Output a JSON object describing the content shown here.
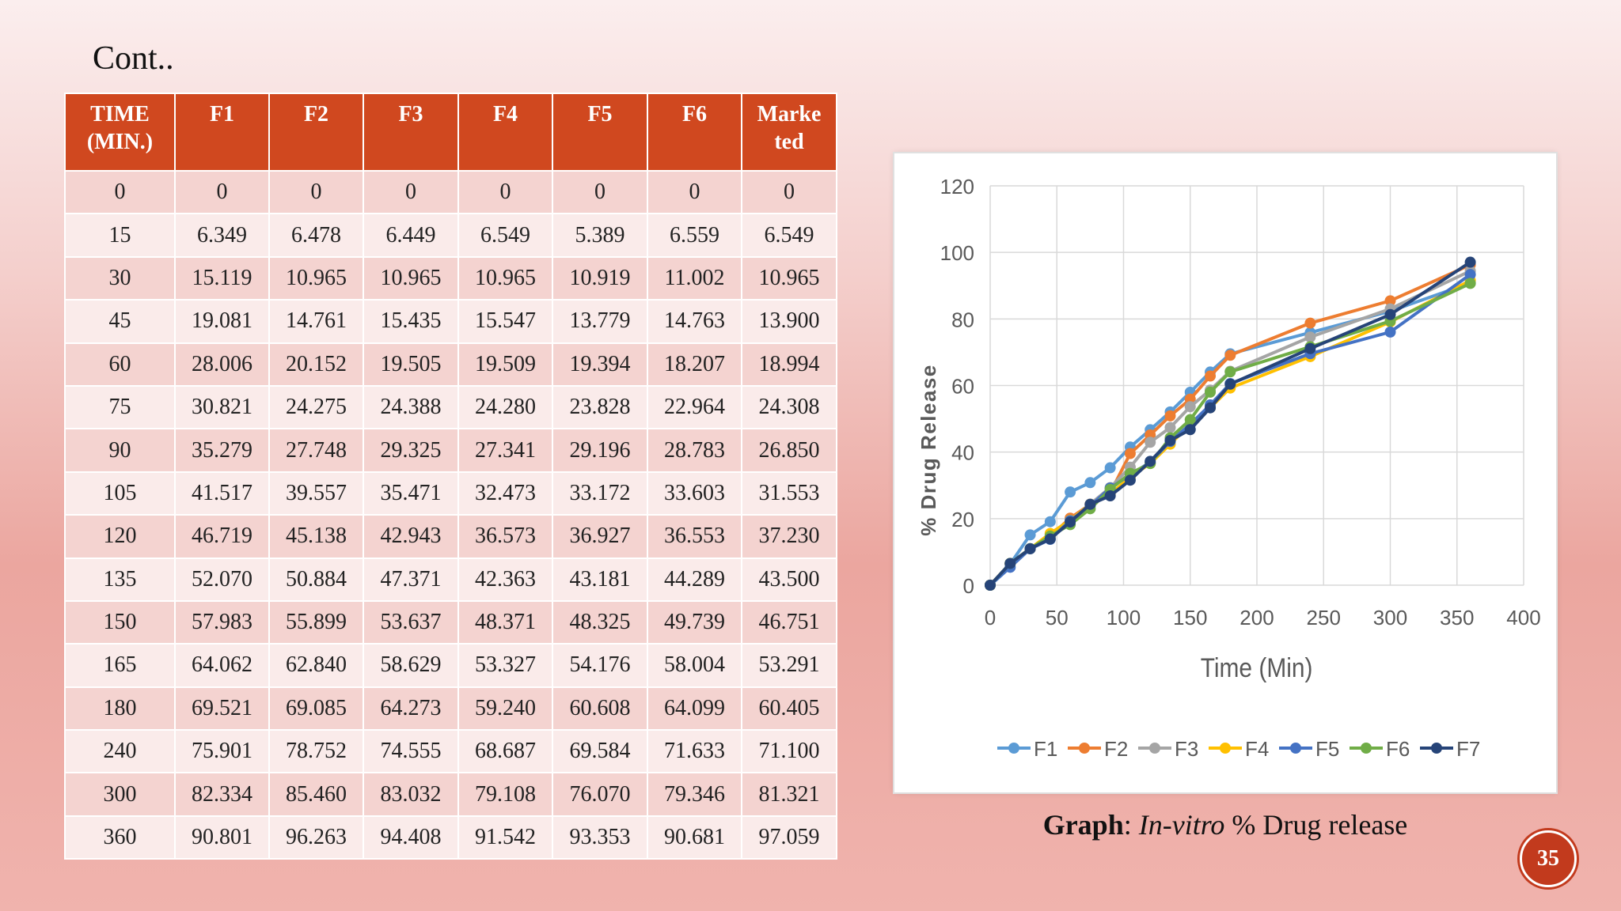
{
  "slide": {
    "title": "Cont..",
    "page_number": "35",
    "caption_bold": "Graph",
    "caption_sep": ": ",
    "caption_italic": "In-vitro",
    "caption_rest": " % Drug release"
  },
  "table": {
    "headers": [
      "TIME (MIN.)",
      "F1",
      "F2",
      "F3",
      "F4",
      "F5",
      "F6",
      "Marke ted"
    ],
    "rows": [
      [
        "0",
        "0",
        "0",
        "0",
        "0",
        "0",
        "0",
        "0"
      ],
      [
        "15",
        "6.349",
        "6.478",
        "6.449",
        "6.549",
        "5.389",
        "6.559",
        "6.549"
      ],
      [
        "30",
        "15.119",
        "10.965",
        "10.965",
        "10.965",
        "10.919",
        "11.002",
        "10.965"
      ],
      [
        "45",
        "19.081",
        "14.761",
        "15.435",
        "15.547",
        "13.779",
        "14.763",
        "13.900"
      ],
      [
        "60",
        "28.006",
        "20.152",
        "19.505",
        "19.509",
        "19.394",
        "18.207",
        "18.994"
      ],
      [
        "75",
        "30.821",
        "24.275",
        "24.388",
        "24.280",
        "23.828",
        "22.964",
        "24.308"
      ],
      [
        "90",
        "35.279",
        "27.748",
        "29.325",
        "27.341",
        "29.196",
        "28.783",
        "26.850"
      ],
      [
        "105",
        "41.517",
        "39.557",
        "35.471",
        "32.473",
        "33.172",
        "33.603",
        "31.553"
      ],
      [
        "120",
        "46.719",
        "45.138",
        "42.943",
        "36.573",
        "36.927",
        "36.553",
        "37.230"
      ],
      [
        "135",
        "52.070",
        "50.884",
        "47.371",
        "42.363",
        "43.181",
        "44.289",
        "43.500"
      ],
      [
        "150",
        "57.983",
        "55.899",
        "53.637",
        "48.371",
        "48.325",
        "49.739",
        "46.751"
      ],
      [
        "165",
        "64.062",
        "62.840",
        "58.629",
        "53.327",
        "54.176",
        "58.004",
        "53.291"
      ],
      [
        "180",
        "69.521",
        "69.085",
        "64.273",
        "59.240",
        "60.608",
        "64.099",
        "60.405"
      ],
      [
        "240",
        "75.901",
        "78.752",
        "74.555",
        "68.687",
        "69.584",
        "71.633",
        "71.100"
      ],
      [
        "300",
        "82.334",
        "85.460",
        "83.032",
        "79.108",
        "76.070",
        "79.346",
        "81.321"
      ],
      [
        "360",
        "90.801",
        "96.263",
        "94.408",
        "91.542",
        "93.353",
        "90.681",
        "97.059"
      ]
    ]
  },
  "chart_data": {
    "type": "line",
    "title": "",
    "xlabel": "Time (Min)",
    "ylabel": "% Drug Release",
    "xlim": [
      0,
      400
    ],
    "ylim": [
      0,
      120
    ],
    "x_ticks": [
      "0",
      "50",
      "100",
      "150",
      "200",
      "250",
      "300",
      "350",
      "400"
    ],
    "y_ticks": [
      "0",
      "20",
      "40",
      "60",
      "80",
      "100",
      "120"
    ],
    "grid": true,
    "legend_position": "bottom",
    "x": [
      0,
      15,
      30,
      45,
      60,
      75,
      90,
      105,
      120,
      135,
      150,
      165,
      180,
      240,
      300,
      360
    ],
    "series": [
      {
        "name": "F1",
        "color": "#5b9bd5",
        "values": [
          0,
          6.349,
          15.119,
          19.081,
          28.006,
          30.821,
          35.279,
          41.517,
          46.719,
          52.07,
          57.983,
          64.062,
          69.521,
          75.901,
          82.334,
          90.801
        ]
      },
      {
        "name": "F2",
        "color": "#ed7d31",
        "values": [
          0,
          6.478,
          10.965,
          14.761,
          20.152,
          24.275,
          27.748,
          39.557,
          45.138,
          50.884,
          55.899,
          62.84,
          69.085,
          78.752,
          85.46,
          96.263
        ]
      },
      {
        "name": "F3",
        "color": "#a5a5a5",
        "values": [
          0,
          6.449,
          10.965,
          15.435,
          19.505,
          24.388,
          29.325,
          35.471,
          42.943,
          47.371,
          53.637,
          58.629,
          64.273,
          74.555,
          83.032,
          94.408
        ]
      },
      {
        "name": "F4",
        "color": "#ffc000",
        "values": [
          0,
          6.549,
          10.965,
          15.547,
          19.509,
          24.28,
          27.341,
          32.473,
          36.573,
          42.363,
          48.371,
          53.327,
          59.24,
          68.687,
          79.108,
          91.542
        ]
      },
      {
        "name": "F5",
        "color": "#4472c4",
        "values": [
          0,
          5.389,
          10.919,
          13.779,
          19.394,
          23.828,
          29.196,
          33.172,
          36.927,
          43.181,
          48.325,
          54.176,
          60.608,
          69.584,
          76.07,
          93.353
        ]
      },
      {
        "name": "F6",
        "color": "#70ad47",
        "values": [
          0,
          6.559,
          11.002,
          14.763,
          18.207,
          22.964,
          28.783,
          33.603,
          36.553,
          44.289,
          49.739,
          58.004,
          64.099,
          71.633,
          79.346,
          90.681
        ]
      },
      {
        "name": "F7",
        "color": "#264478",
        "values": [
          0,
          6.549,
          10.965,
          13.9,
          18.994,
          24.308,
          26.85,
          31.553,
          37.23,
          43.5,
          46.751,
          53.291,
          60.405,
          71.1,
          81.321,
          97.059
        ]
      }
    ]
  }
}
